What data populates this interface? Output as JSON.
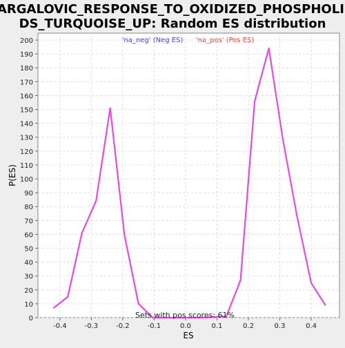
{
  "chart_data": {
    "type": "line",
    "title_line1": "GARGALOVIC_RESPONSE_TO_OXIDIZED_PHOSPHOLIPI",
    "title_line2": "DS_TURQUOISE_UP: Random ES distribution",
    "xlabel": "ES",
    "ylabel": "P(ES)",
    "xlim": [
      -0.47,
      0.49
    ],
    "ylim": [
      0,
      205
    ],
    "x_ticks": [
      -0.4,
      -0.3,
      -0.2,
      -0.1,
      0.0,
      0.1,
      0.2,
      0.3,
      0.4
    ],
    "x_tick_labels": [
      "-0.4",
      "-0.3",
      "-0.2",
      "-0.1",
      "0.0",
      "0.1",
      "0.2",
      "0.3",
      "0.4"
    ],
    "y_ticks": [
      0,
      10,
      20,
      30,
      40,
      50,
      60,
      70,
      80,
      90,
      100,
      110,
      120,
      130,
      140,
      150,
      160,
      170,
      180,
      190,
      200
    ],
    "grid": true,
    "legend": [
      {
        "label": "'na_neg' (Neg ES)",
        "color": "#4040ff"
      },
      {
        "label": "'na_pos' (Pos ES)",
        "color": "#ff4040"
      }
    ],
    "annotation": "Sets with pos scores: 61%",
    "series": [
      {
        "color": "#ee44ee",
        "x": [
          -0.42,
          -0.375,
          -0.33,
          -0.285,
          -0.24,
          -0.195,
          -0.15,
          -0.105,
          -0.06,
          0.0,
          0.05,
          0.13,
          0.175,
          0.22,
          0.265,
          0.31,
          0.355,
          0.4,
          0.445
        ],
        "y": [
          7,
          15,
          61,
          84,
          151,
          60,
          10,
          0,
          0,
          0,
          0,
          1,
          27,
          156,
          194,
          128,
          73,
          25,
          9
        ]
      }
    ]
  }
}
